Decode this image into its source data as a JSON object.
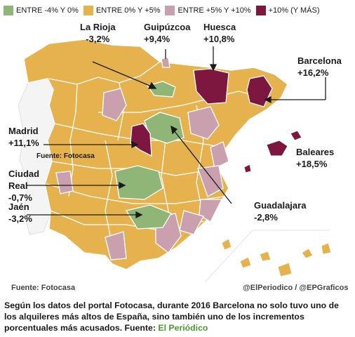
{
  "legend": [
    {
      "label": "ENTRE -4% Y 0%",
      "color": "#8fb577"
    },
    {
      "label": "ENTRE 0% Y +5%",
      "color": "#e6b24e"
    },
    {
      "label": "ENTRE +5% Y +10%",
      "color": "#caa0ae"
    },
    {
      "label": "+10% (Y MÁS)",
      "color": "#7e1740"
    }
  ],
  "colors": {
    "land": "#e6b24e",
    "border": "#ffffff",
    "arrow": "#1a1a1a"
  },
  "regions": {
    "la_rioja": {
      "name": "La Rioja",
      "value": "-3,2%"
    },
    "guipuzcoa": {
      "name": "Guipúzcoa",
      "value": "+9,4%"
    },
    "huesca": {
      "name": "Huesca",
      "value": "+10,8%"
    },
    "barcelona": {
      "name": "Barcelona",
      "value": "+16,2%"
    },
    "madrid": {
      "name": "Madrid",
      "value": "+11,1%"
    },
    "ciudad_real": {
      "name": "Ciudad\nReal",
      "value": "-0,7%"
    },
    "jaen": {
      "name": "Jaén",
      "value": "-3,2%"
    },
    "baleares": {
      "name": "Baleares",
      "value": "+18,5%"
    },
    "guadalajara": {
      "name": "Guadalajara",
      "value": "-2,8%"
    }
  },
  "inner_source": "Fuente: Fotocasa",
  "footer": {
    "source": "Fuente: Fotocasa",
    "credit": "@ElPeriodico / @EPGraficos"
  },
  "caption": {
    "text": "Según los datos del portal Fotocasa, durante 2016 Barcelona no solo tuvo uno de los alquileres más altos de España, sino también uno de los incrementos porcentuales más acusados. Fuente: ",
    "link": "El Periódico"
  }
}
